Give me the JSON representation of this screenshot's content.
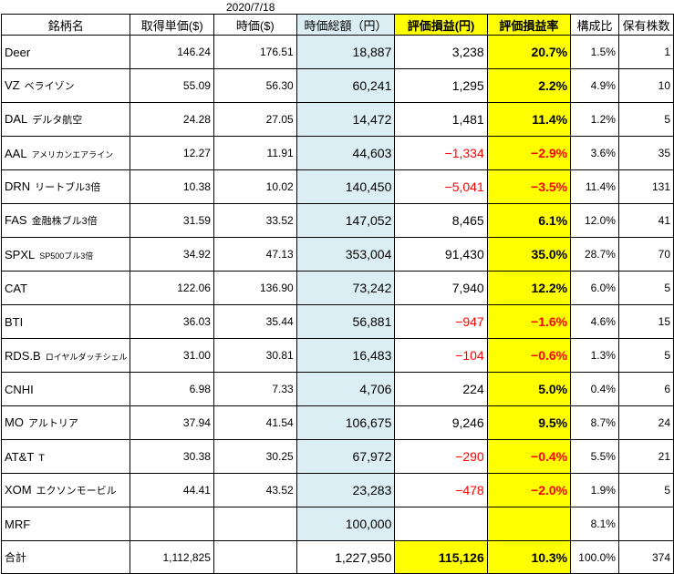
{
  "date": "2020/7/18",
  "headers": {
    "name": "銘柄名",
    "cost": "取得単価($)",
    "price": "時価($)",
    "value": "時価総額（円）",
    "pl": "評価損益(円)",
    "pl_rate": "評価損益率",
    "ratio": "構成比",
    "shares": "保有株数"
  },
  "rows": [
    {
      "ticker": "Deer",
      "sub": "",
      "cost": "146.24",
      "price": "176.51",
      "value": "18,887",
      "pl": "3,238",
      "pl_rate": "20.7%",
      "ratio": "1.5%",
      "shares": "1"
    },
    {
      "ticker": "VZ",
      "sub": "ベライゾン",
      "cost": "55.09",
      "price": "56.30",
      "value": "60,241",
      "pl": "1,295",
      "pl_rate": "2.2%",
      "ratio": "4.9%",
      "shares": "10"
    },
    {
      "ticker": "DAL",
      "sub": "デルタ航空",
      "cost": "24.28",
      "price": "27.05",
      "value": "14,472",
      "pl": "1,481",
      "pl_rate": "11.4%",
      "ratio": "1.2%",
      "shares": "5"
    },
    {
      "ticker": "AAL",
      "sub": "アメリカンエアライン",
      "cost": "12.27",
      "price": "11.91",
      "value": "44,603",
      "pl": "−1,334",
      "pl_rate": "−2.9%",
      "ratio": "3.6%",
      "shares": "35"
    },
    {
      "ticker": "DRN",
      "sub": "リートブル3倍",
      "cost": "10.38",
      "price": "10.02",
      "value": "140,450",
      "pl": "−5,041",
      "pl_rate": "−3.5%",
      "ratio": "11.4%",
      "shares": "131"
    },
    {
      "ticker": "FAS",
      "sub": "金融株ブル3倍",
      "cost": "31.59",
      "price": "33.52",
      "value": "147,052",
      "pl": "8,465",
      "pl_rate": "6.1%",
      "ratio": "12.0%",
      "shares": "41"
    },
    {
      "ticker": "SPXL",
      "sub": "SP500ブル3倍",
      "cost": "34.92",
      "price": "47.13",
      "value": "353,004",
      "pl": "91,430",
      "pl_rate": "35.0%",
      "ratio": "28.7%",
      "shares": "70"
    },
    {
      "ticker": "CAT",
      "sub": "",
      "cost": "122.06",
      "price": "136.90",
      "value": "73,242",
      "pl": "7,940",
      "pl_rate": "12.2%",
      "ratio": "6.0%",
      "shares": "5"
    },
    {
      "ticker": "BTI",
      "sub": "",
      "cost": "36.03",
      "price": "35.44",
      "value": "56,881",
      "pl": "−947",
      "pl_rate": "−1.6%",
      "ratio": "4.6%",
      "shares": "15"
    },
    {
      "ticker": "RDS.B",
      "sub": "ロイヤルダッチシェル",
      "cost": "31.00",
      "price": "30.81",
      "value": "16,483",
      "pl": "−104",
      "pl_rate": "−0.6%",
      "ratio": "1.3%",
      "shares": "5"
    },
    {
      "ticker": "CNHI",
      "sub": "",
      "cost": "6.98",
      "price": "7.33",
      "value": "4,706",
      "pl": "224",
      "pl_rate": "5.0%",
      "ratio": "0.4%",
      "shares": "6"
    },
    {
      "ticker": "MO",
      "sub": "アルトリア",
      "cost": "37.94",
      "price": "41.54",
      "value": "106,675",
      "pl": "9,246",
      "pl_rate": "9.5%",
      "ratio": "8.7%",
      "shares": "24"
    },
    {
      "ticker": "AT&T",
      "sub": "T",
      "cost": "30.38",
      "price": "30.25",
      "value": "67,972",
      "pl": "−290",
      "pl_rate": "−0.4%",
      "ratio": "5.5%",
      "shares": "21"
    },
    {
      "ticker": "XOM",
      "sub": "エクソンモービル",
      "cost": "44.41",
      "price": "43.52",
      "value": "23,283",
      "pl": "−478",
      "pl_rate": "−2.0%",
      "ratio": "1.9%",
      "shares": "5"
    },
    {
      "ticker": "MRF",
      "sub": "",
      "cost": "",
      "price": "",
      "value": "100,000",
      "pl": "",
      "pl_rate": "",
      "ratio": "8.1%",
      "shares": ""
    }
  ],
  "total": {
    "label": "合計",
    "cost": "1,112,825",
    "price": "",
    "value": "1,227,950",
    "pl": "115,126",
    "pl_rate": "10.3%",
    "ratio": "100.0%",
    "shares": "374"
  },
  "colors": {
    "value_column": "#dbeef4",
    "pl_highlight": "#ffff00",
    "negative": "#ff0000"
  }
}
